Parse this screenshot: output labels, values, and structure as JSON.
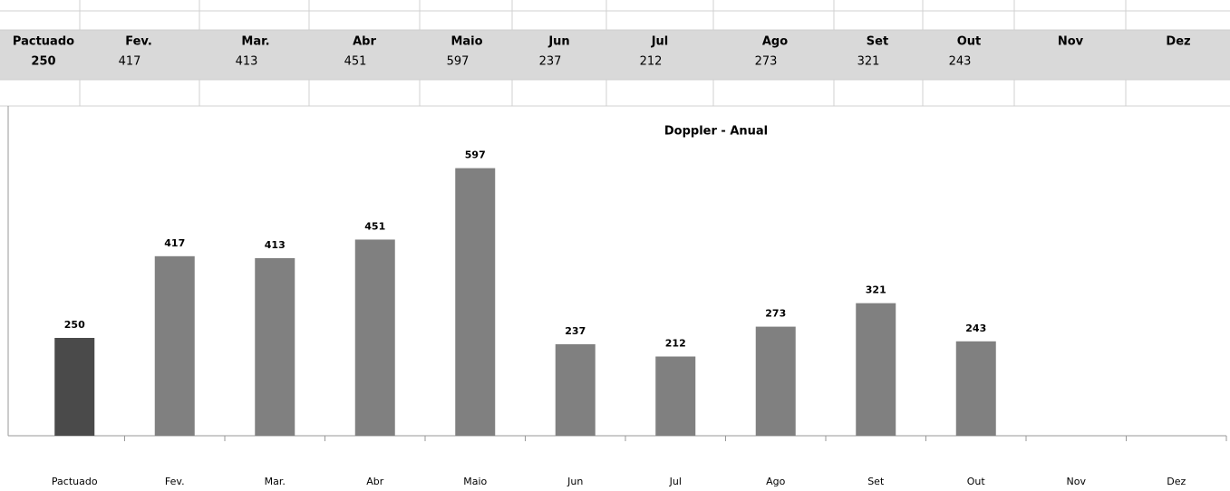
{
  "chart_data": {
    "type": "bar",
    "title": "Doppler - Anual",
    "categories": [
      "Pactuado",
      "Fev.",
      "Mar.",
      "Abr",
      "Maio",
      "Jun",
      "Jul",
      "Ago",
      "Set",
      "Out",
      "Nov",
      "Dez"
    ],
    "values": [
      250,
      417,
      413,
      451,
      597,
      237,
      212,
      273,
      321,
      243,
      null,
      null
    ],
    "colors": [
      "#4a4a4a",
      "#808080",
      "#808080",
      "#808080",
      "#808080",
      "#808080",
      "#808080",
      "#808080",
      "#808080",
      "#808080",
      "#808080",
      "#808080"
    ],
    "ylim": [
      50,
      700
    ]
  }
}
